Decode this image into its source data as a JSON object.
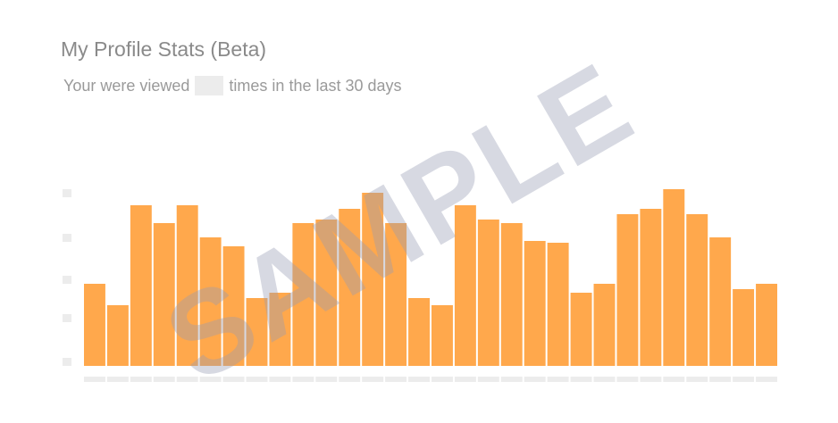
{
  "header": {
    "title": "My Profile Stats (Beta)",
    "subtitle_before": "Your were viewed",
    "subtitle_after": "times in the last 30 days"
  },
  "watermark": "SAMPLE",
  "colors": {
    "bar": "#ffa84c",
    "placeholder": "#ececec",
    "watermark": "rgba(150,156,180,0.38)"
  },
  "chart_data": {
    "type": "bar",
    "categories": [
      "",
      "",
      "",
      "",
      "",
      "",
      "",
      "",
      "",
      "",
      "",
      "",
      "",
      "",
      "",
      "",
      "",
      "",
      "",
      "",
      "",
      "",
      "",
      "",
      "",
      "",
      "",
      "",
      "",
      ""
    ],
    "values": [
      46,
      34,
      90,
      80,
      90,
      72,
      67,
      38,
      41,
      80,
      82,
      88,
      97,
      80,
      38,
      34,
      90,
      82,
      80,
      70,
      69,
      41,
      46,
      85,
      88,
      99,
      85,
      72,
      43,
      46
    ],
    "ylim": [
      0,
      100
    ],
    "xlabel": "",
    "ylabel": "",
    "grid": false,
    "legend": "none"
  }
}
